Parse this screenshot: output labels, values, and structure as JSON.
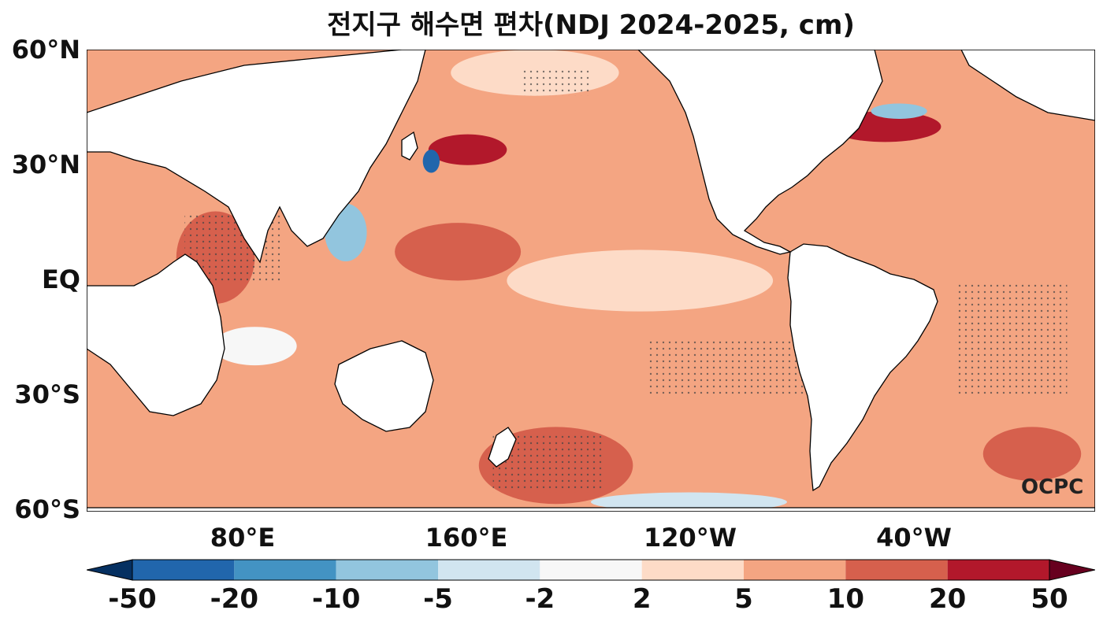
{
  "chart_data": {
    "type": "heatmap",
    "title": "전지구 해수면 편차(NDJ 2024-2025, cm)",
    "map_extent": {
      "lon_min": 20,
      "lon_max": 380,
      "lat_min": -60,
      "lat_max": 60
    },
    "y_ticks": [
      {
        "lat": 60,
        "label": "60°N"
      },
      {
        "lat": 30,
        "label": "30°N"
      },
      {
        "lat": 0,
        "label": "EQ"
      },
      {
        "lat": -30,
        "label": "30°S"
      },
      {
        "lat": -60,
        "label": "60°S"
      }
    ],
    "x_ticks": [
      {
        "lon": 80,
        "label": "80°E"
      },
      {
        "lon": 160,
        "label": "160°E"
      },
      {
        "lon": 240,
        "label": "120°W"
      },
      {
        "lon": 320,
        "label": "40°W"
      }
    ],
    "colorbar": {
      "levels": [
        -50,
        -20,
        -10,
        -5,
        -2,
        2,
        5,
        10,
        20,
        50
      ],
      "labels": [
        "-50",
        "-20",
        "-10",
        "-5",
        "-2",
        "2",
        "5",
        "10",
        "20",
        "50"
      ],
      "colors": [
        "#053061",
        "#2166ac",
        "#4393c3",
        "#92c5de",
        "#d1e5f0",
        "#f7f7f7",
        "#fddbc7",
        "#f4a582",
        "#d6604d",
        "#b2182b",
        "#67001f"
      ],
      "extend": "both"
    },
    "background_anomaly_class": "#f4a582",
    "regions": [
      {
        "name": "central-pacific-weak-band",
        "lon": [
          170,
          265
        ],
        "lat": [
          -8,
          8
        ],
        "color": "#fddbc7"
      },
      {
        "name": "tropical-indian-ocean-high",
        "lon": [
          52,
          80
        ],
        "lat": [
          -6,
          18
        ],
        "color": "#d6604d"
      },
      {
        "name": "kuroshio-extension-high",
        "lon": [
          142,
          170
        ],
        "lat": [
          30,
          38
        ],
        "color": "#b2182b"
      },
      {
        "name": "kuroshio-negative-eddy",
        "lon": [
          140,
          146
        ],
        "lat": [
          28,
          34
        ],
        "color": "#2166ac"
      },
      {
        "name": "gulf-stream-high",
        "lon": [
          285,
          325
        ],
        "lat": [
          36,
          44
        ],
        "color": "#b2182b"
      },
      {
        "name": "gulf-stream-negative",
        "lon": [
          300,
          320
        ],
        "lat": [
          42,
          46
        ],
        "color": "#92c5de"
      },
      {
        "name": "south-pacific-high",
        "lon": [
          160,
          215
        ],
        "lat": [
          -58,
          -38
        ],
        "color": "#d6604d"
      },
      {
        "name": "western-pacific-high",
        "lon": [
          130,
          175
        ],
        "lat": [
          0,
          15
        ],
        "color": "#d6604d"
      },
      {
        "name": "south-atlantic-high",
        "lon": [
          340,
          375
        ],
        "lat": [
          -52,
          -38
        ],
        "color": "#d6604d"
      },
      {
        "name": "south-china-sea-negative",
        "lon": [
          105,
          120
        ],
        "lat": [
          5,
          20
        ],
        "color": "#92c5de"
      },
      {
        "name": "arabian-sea-weak-band",
        "lon": [
          65,
          95
        ],
        "lat": [
          -22,
          -12
        ],
        "color": "#f7f7f7"
      },
      {
        "name": "southern-ocean-negative",
        "lon": [
          200,
          270
        ],
        "lat": [
          -60,
          -55
        ],
        "color": "#d1e5f0"
      },
      {
        "name": "north-pacific-weak",
        "lon": [
          150,
          210
        ],
        "lat": [
          48,
          60
        ],
        "color": "#fddbc7"
      }
    ],
    "stippled_regions": [
      {
        "name": "indian-ocean-stipple",
        "lon": [
          55,
          90
        ],
        "lat": [
          0,
          18
        ]
      },
      {
        "name": "southeast-pacific-stipple",
        "lon": [
          220,
          280
        ],
        "lat": [
          -30,
          -15
        ]
      },
      {
        "name": "south-atlantic-stipple",
        "lon": [
          330,
          370
        ],
        "lat": [
          -30,
          0
        ]
      },
      {
        "name": "south-pacific-stipple",
        "lon": [
          165,
          205
        ],
        "lat": [
          -55,
          -40
        ]
      },
      {
        "name": "north-pacific-stipple",
        "lon": [
          175,
          200
        ],
        "lat": [
          48,
          55
        ]
      }
    ]
  },
  "watermark": "OCPC"
}
